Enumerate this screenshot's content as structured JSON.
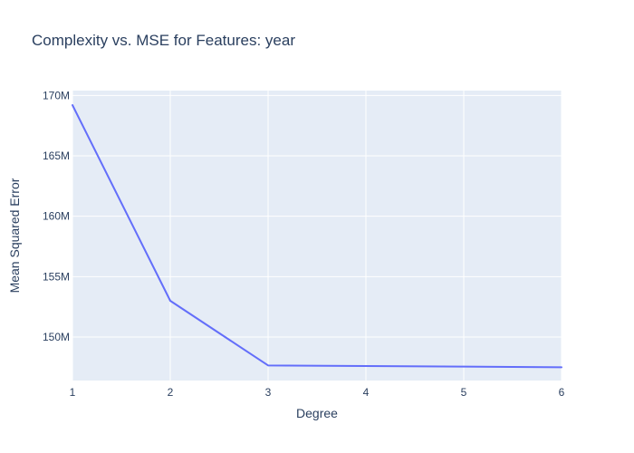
{
  "chart_data": {
    "type": "line",
    "title": "Complexity vs. MSE for Features: year",
    "xlabel": "Degree",
    "ylabel": "Mean Squared Error",
    "x": [
      1,
      2,
      3,
      4,
      5,
      6
    ],
    "series": [
      {
        "values": [
          169200000,
          153000000,
          147650000,
          147600000,
          147550000,
          147500000
        ]
      }
    ],
    "xlim": [
      1,
      6
    ],
    "ylim": [
      146400000,
      170400000
    ],
    "x_ticks": [
      1,
      2,
      3,
      4,
      5,
      6
    ],
    "y_ticks": [
      150000000,
      155000000,
      160000000,
      165000000,
      170000000
    ],
    "y_tick_labels": [
      "150M",
      "155M",
      "160M",
      "165M",
      "170M"
    ],
    "grid": true,
    "colors": {
      "line": "#636efa",
      "plot_background": "#e5ecf6",
      "grid": "#ffffff",
      "text": "#2a3f5f"
    }
  }
}
